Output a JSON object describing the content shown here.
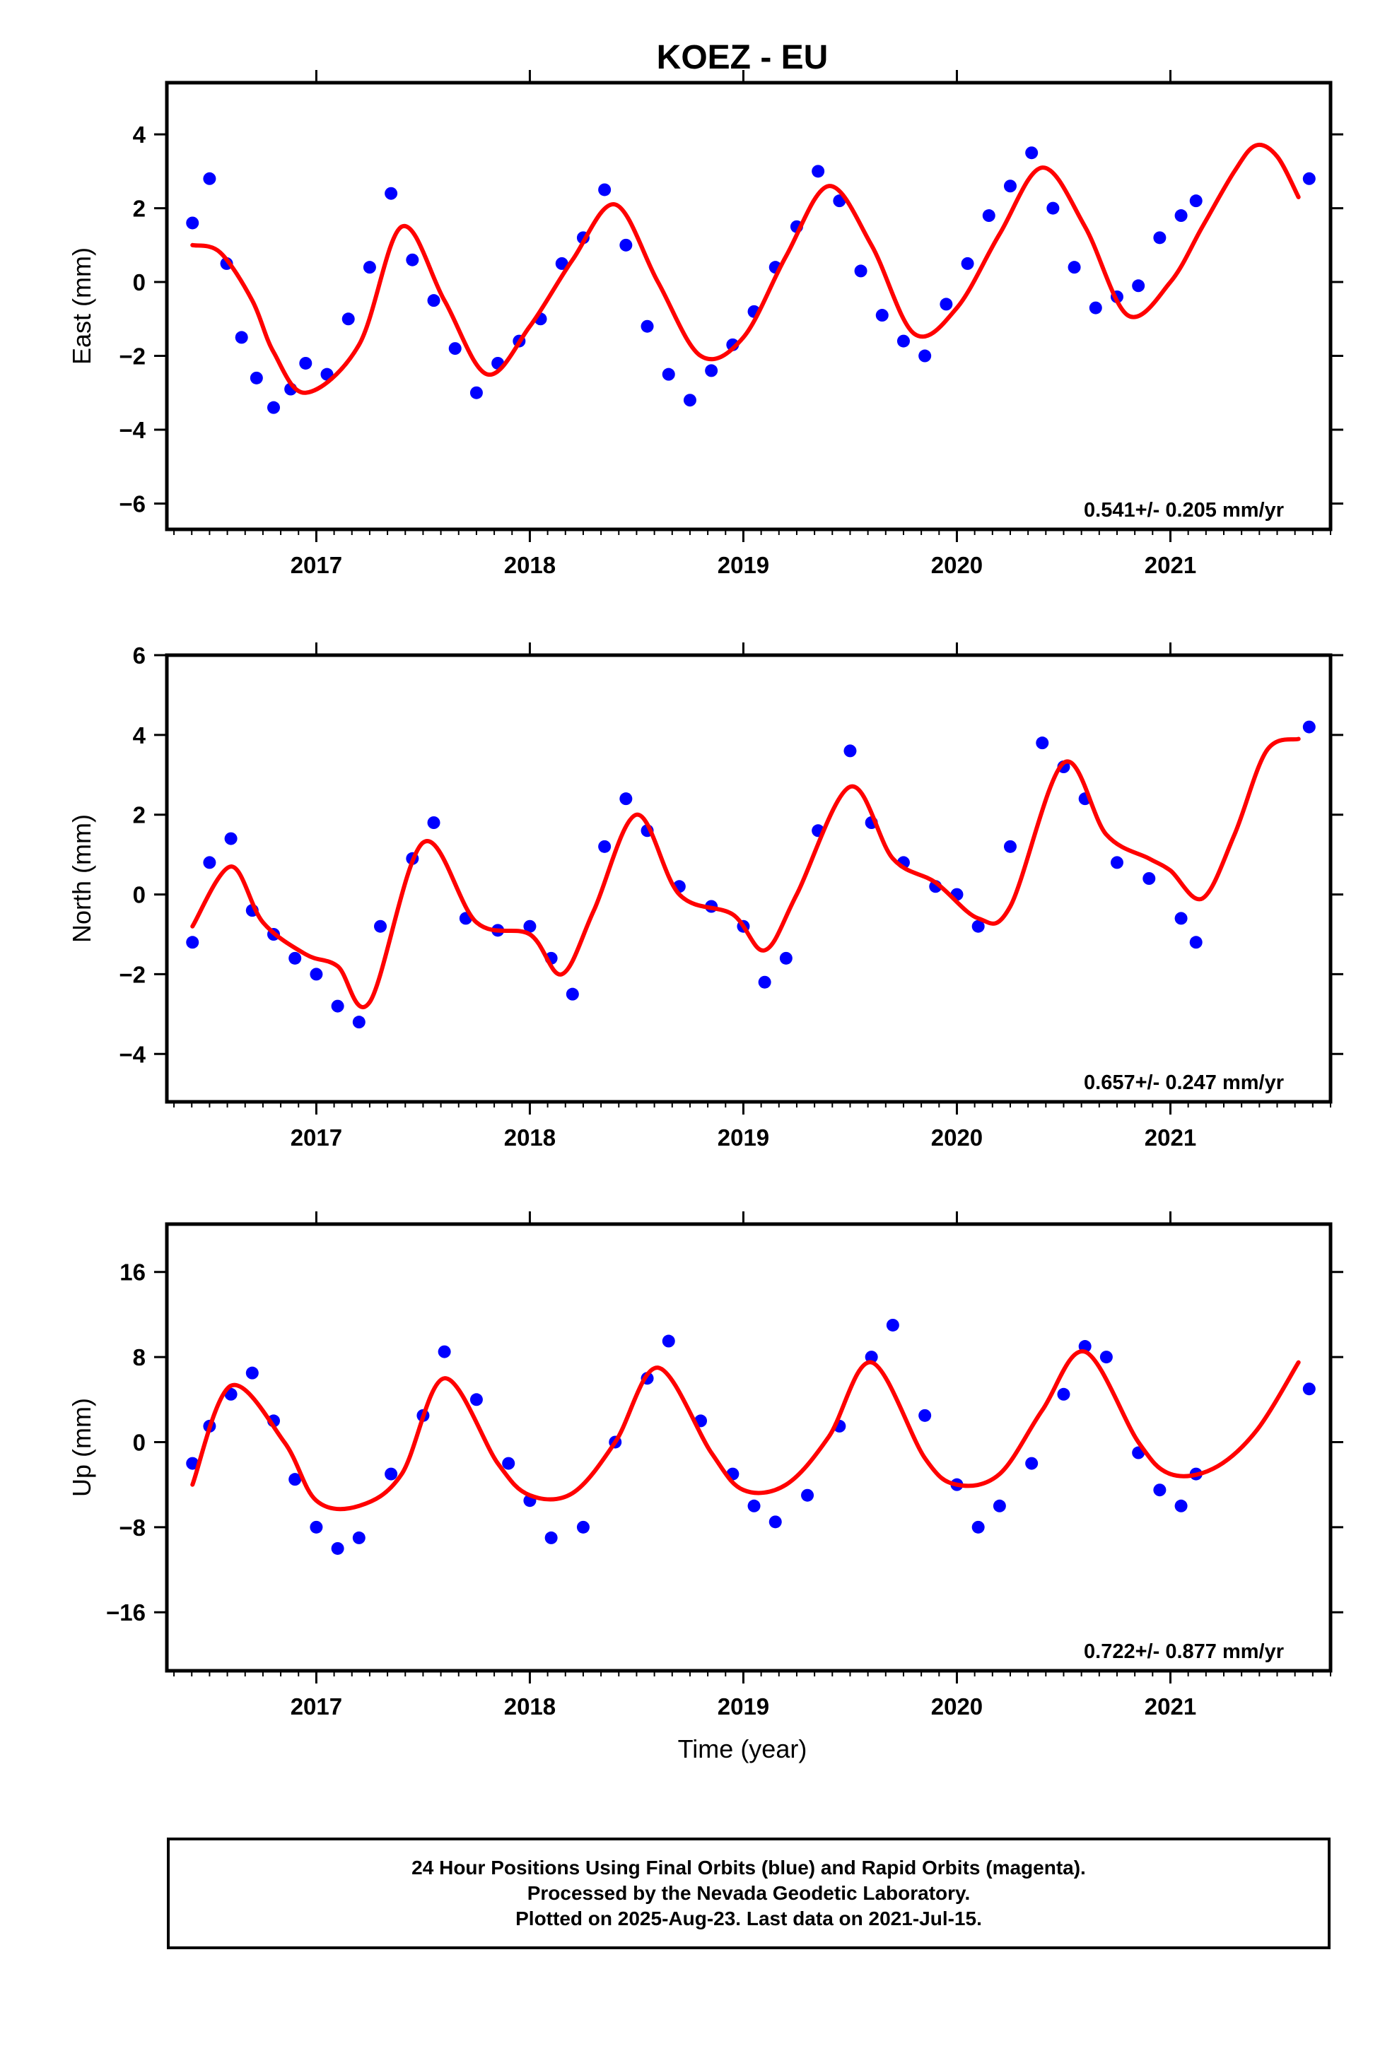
{
  "chart_data": {
    "type": "scatter",
    "title": "KOEZ - EU",
    "xlabel": "Time (year)",
    "xlim": [
      2016.3,
      2021.75
    ],
    "xticks": [
      2017,
      2018,
      2019,
      2020,
      2021
    ],
    "colors": {
      "points": "#0000ff",
      "fit": "#ff0000",
      "axes": "#000000"
    },
    "panels": [
      {
        "ylabel": "East (mm)",
        "ylim": [
          -6.7,
          5.4
        ],
        "yticks": [
          -6,
          -4,
          -2,
          0,
          2,
          4
        ],
        "rate": "0.541+/- 0.205 mm/yr",
        "fit_x": [
          2016.42,
          2016.55,
          2016.7,
          2016.8,
          2016.95,
          2017.2,
          2017.4,
          2017.6,
          2017.8,
          2018.0,
          2018.2,
          2018.4,
          2018.6,
          2018.8,
          2019.0,
          2019.2,
          2019.4,
          2019.6,
          2019.8,
          2020.0,
          2020.2,
          2020.4,
          2020.6,
          2020.8,
          2021.0,
          2021.15,
          2021.3,
          2021.4,
          2021.5,
          2021.6
        ],
        "fit_y": [
          1.0,
          0.8,
          -0.5,
          -1.9,
          -3.0,
          -1.7,
          1.5,
          -0.5,
          -2.5,
          -1.2,
          0.6,
          2.1,
          0.0,
          -2.0,
          -1.5,
          0.7,
          2.6,
          1.0,
          -1.4,
          -0.7,
          1.3,
          3.1,
          1.5,
          -0.9,
          0.0,
          1.5,
          3.0,
          3.7,
          3.4,
          2.3
        ],
        "points_x": [
          2016.42,
          2016.5,
          2016.58,
          2016.65,
          2016.72,
          2016.8,
          2016.88,
          2016.95,
          2017.05,
          2017.15,
          2017.25,
          2017.35,
          2017.45,
          2017.55,
          2017.65,
          2017.75,
          2017.85,
          2017.95,
          2018.05,
          2018.15,
          2018.25,
          2018.35,
          2018.45,
          2018.55,
          2018.65,
          2018.75,
          2018.85,
          2018.95,
          2019.05,
          2019.15,
          2019.25,
          2019.35,
          2019.45,
          2019.55,
          2019.65,
          2019.75,
          2019.85,
          2019.95,
          2020.05,
          2020.15,
          2020.25,
          2020.35,
          2020.45,
          2020.55,
          2020.65,
          2020.75,
          2020.85,
          2020.95,
          2021.05,
          2021.12,
          2021.65
        ],
        "points_y": [
          1.6,
          2.8,
          0.5,
          -1.5,
          -2.6,
          -3.4,
          -2.9,
          -2.2,
          -2.5,
          -1.0,
          0.4,
          2.4,
          0.6,
          -0.5,
          -1.8,
          -3.0,
          -2.2,
          -1.6,
          -1.0,
          0.5,
          1.2,
          2.5,
          1.0,
          -1.2,
          -2.5,
          -3.2,
          -2.4,
          -1.7,
          -0.8,
          0.4,
          1.5,
          3.0,
          2.2,
          0.3,
          -0.9,
          -1.6,
          -2.0,
          -0.6,
          0.5,
          1.8,
          2.6,
          3.5,
          2.0,
          0.4,
          -0.7,
          -0.4,
          -0.1,
          1.2,
          1.8,
          2.2,
          2.8
        ]
      },
      {
        "ylabel": "North (mm)",
        "ylim": [
          -5.2,
          6.0
        ],
        "yticks": [
          -4,
          -2,
          0,
          2,
          4,
          6
        ],
        "rate": "0.657+/- 0.247 mm/yr",
        "fit_x": [
          2016.42,
          2016.6,
          2016.75,
          2016.95,
          2017.1,
          2017.25,
          2017.5,
          2017.75,
          2018.0,
          2018.15,
          2018.3,
          2018.5,
          2018.7,
          2018.95,
          2019.1,
          2019.25,
          2019.5,
          2019.7,
          2019.9,
          2020.1,
          2020.25,
          2020.5,
          2020.7,
          2020.9,
          2021.0,
          2021.15,
          2021.3,
          2021.45,
          2021.6
        ],
        "fit_y": [
          -0.8,
          0.7,
          -0.7,
          -1.5,
          -1.8,
          -2.7,
          1.3,
          -0.7,
          -1.0,
          -2.0,
          -0.4,
          2.0,
          0.0,
          -0.5,
          -1.4,
          0.0,
          2.7,
          0.9,
          0.3,
          -0.6,
          -0.3,
          3.3,
          1.5,
          0.9,
          0.6,
          -0.1,
          1.5,
          3.6,
          3.9
        ],
        "points_x": [
          2016.42,
          2016.5,
          2016.6,
          2016.7,
          2016.8,
          2016.9,
          2017.0,
          2017.1,
          2017.2,
          2017.3,
          2017.45,
          2017.55,
          2017.7,
          2017.85,
          2018.0,
          2018.1,
          2018.2,
          2018.35,
          2018.45,
          2018.55,
          2018.7,
          2018.85,
          2019.0,
          2019.1,
          2019.2,
          2019.35,
          2019.5,
          2019.6,
          2019.75,
          2019.9,
          2020.0,
          2020.1,
          2020.25,
          2020.4,
          2020.5,
          2020.6,
          2020.75,
          2020.9,
          2021.05,
          2021.12,
          2021.65
        ],
        "points_y": [
          -1.2,
          0.8,
          1.4,
          -0.4,
          -1.0,
          -1.6,
          -2.0,
          -2.8,
          -3.2,
          -0.8,
          0.9,
          1.8,
          -0.6,
          -0.9,
          -0.8,
          -1.6,
          -2.5,
          1.2,
          2.4,
          1.6,
          0.2,
          -0.3,
          -0.8,
          -2.2,
          -1.6,
          1.6,
          3.6,
          1.8,
          0.8,
          0.2,
          0.0,
          -0.8,
          1.2,
          3.8,
          3.2,
          2.4,
          0.8,
          0.4,
          -0.6,
          -1.2,
          4.2
        ]
      },
      {
        "ylabel": "Up (mm)",
        "ylim": [
          -21.5,
          20.5
        ],
        "yticks": [
          -16,
          -8,
          0,
          8,
          16
        ],
        "rate": "0.722+/- 0.877 mm/yr",
        "fit_x": [
          2016.42,
          2016.6,
          2016.85,
          2017.0,
          2017.2,
          2017.4,
          2017.6,
          2017.85,
          2018.0,
          2018.2,
          2018.4,
          2018.6,
          2018.85,
          2019.0,
          2019.2,
          2019.4,
          2019.6,
          2019.85,
          2020.0,
          2020.2,
          2020.4,
          2020.6,
          2020.85,
          2021.0,
          2021.2,
          2021.4,
          2021.6
        ],
        "fit_y": [
          -4.0,
          5.3,
          0.0,
          -5.5,
          -6.0,
          -3.0,
          6.0,
          -2.0,
          -5.0,
          -4.8,
          0.0,
          7.0,
          -1.0,
          -4.5,
          -4.0,
          0.5,
          7.5,
          -1.5,
          -4.0,
          -3.0,
          3.0,
          8.5,
          0.0,
          -3.0,
          -2.5,
          1.0,
          7.5
        ],
        "points_x": [
          2016.42,
          2016.5,
          2016.6,
          2016.7,
          2016.8,
          2016.9,
          2017.0,
          2017.1,
          2017.2,
          2017.35,
          2017.5,
          2017.6,
          2017.75,
          2017.9,
          2018.0,
          2018.1,
          2018.25,
          2018.4,
          2018.55,
          2018.65,
          2018.8,
          2018.95,
          2019.05,
          2019.15,
          2019.3,
          2019.45,
          2019.6,
          2019.7,
          2019.85,
          2020.0,
          2020.1,
          2020.2,
          2020.35,
          2020.5,
          2020.6,
          2020.7,
          2020.85,
          2020.95,
          2021.05,
          2021.12,
          2021.65
        ],
        "points_y": [
          -2.0,
          1.5,
          4.5,
          6.5,
          2.0,
          -3.5,
          -8.0,
          -10.0,
          -9.0,
          -3.0,
          2.5,
          8.5,
          4.0,
          -2.0,
          -5.5,
          -9.0,
          -8.0,
          0.0,
          6.0,
          9.5,
          2.0,
          -3.0,
          -6.0,
          -7.5,
          -5.0,
          1.5,
          8.0,
          11.0,
          2.5,
          -4.0,
          -8.0,
          -6.0,
          -2.0,
          4.5,
          9.0,
          8.0,
          -1.0,
          -4.5,
          -6.0,
          -3.0,
          5.0
        ]
      }
    ]
  },
  "footer": {
    "line1": "24 Hour Positions Using Final Orbits (blue) and Rapid Orbits (magenta).",
    "line2": "Processed by the Nevada Geodetic Laboratory.",
    "line3": "Plotted on 2025-Aug-23. Last data on 2021-Jul-15."
  }
}
